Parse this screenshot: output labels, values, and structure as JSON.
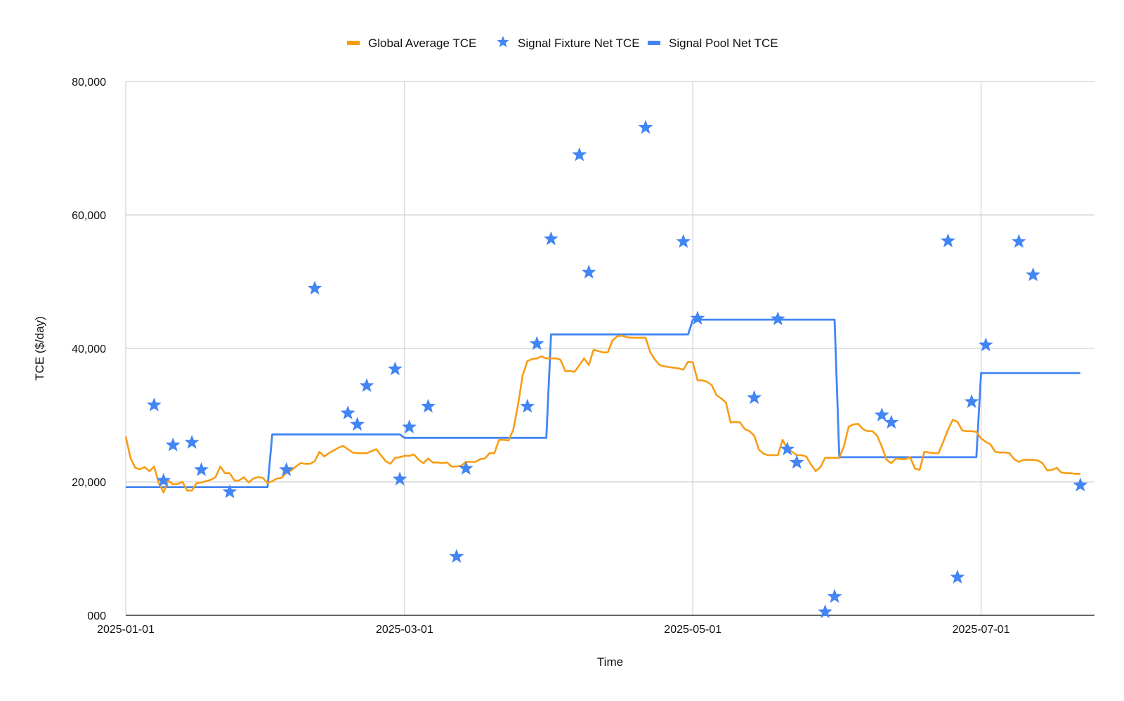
{
  "chart_data": {
    "type": "line",
    "title": "",
    "xlabel": "Time",
    "ylabel": "TCE ($/day)",
    "ylim": [
      0,
      80000
    ],
    "xlim": [
      "2025-01-01",
      "2025-07-25"
    ],
    "grid": true,
    "legend_position": "top-center",
    "y_ticks": [
      {
        "value": 0,
        "label": "000"
      },
      {
        "value": 20000,
        "label": "20,000"
      },
      {
        "value": 40000,
        "label": "40,000"
      },
      {
        "value": 60000,
        "label": "60,000"
      },
      {
        "value": 80000,
        "label": "80,000"
      }
    ],
    "x_ticks": [
      {
        "value": "2025-01-01",
        "label": "2025-01-01"
      },
      {
        "value": "2025-03-01",
        "label": "2025-03-01"
      },
      {
        "value": "2025-05-01",
        "label": "2025-05-01"
      },
      {
        "value": "2025-07-01",
        "label": "2025-07-01"
      }
    ],
    "series": [
      {
        "name": "Global Average TCE",
        "kind": "line",
        "color": "#f89c14",
        "points": [
          [
            "2025-01-01",
            26800
          ],
          [
            "2025-01-02",
            23600
          ],
          [
            "2025-01-03",
            22100
          ],
          [
            "2025-01-04",
            21900
          ],
          [
            "2025-01-05",
            22200
          ],
          [
            "2025-01-06",
            21600
          ],
          [
            "2025-01-07",
            22300
          ],
          [
            "2025-01-08",
            19800
          ],
          [
            "2025-01-09",
            18400
          ],
          [
            "2025-01-10",
            20200
          ],
          [
            "2025-01-11",
            19600
          ],
          [
            "2025-01-12",
            19700
          ],
          [
            "2025-01-13",
            20000
          ],
          [
            "2025-01-14",
            18700
          ],
          [
            "2025-01-15",
            18700
          ],
          [
            "2025-01-16",
            19800
          ],
          [
            "2025-01-17",
            19900
          ],
          [
            "2025-01-18",
            20100
          ],
          [
            "2025-01-19",
            20300
          ],
          [
            "2025-01-20",
            20700
          ],
          [
            "2025-01-21",
            22300
          ],
          [
            "2025-01-22",
            21300
          ],
          [
            "2025-01-23",
            21300
          ],
          [
            "2025-01-24",
            20200
          ],
          [
            "2025-01-25",
            20200
          ],
          [
            "2025-01-26",
            20700
          ],
          [
            "2025-01-27",
            19900
          ],
          [
            "2025-01-28",
            20500
          ],
          [
            "2025-01-29",
            20700
          ],
          [
            "2025-01-30",
            20600
          ],
          [
            "2025-01-31",
            19800
          ],
          [
            "2025-02-01",
            20100
          ],
          [
            "2025-02-02",
            20500
          ],
          [
            "2025-02-03",
            20600
          ],
          [
            "2025-02-04",
            21400
          ],
          [
            "2025-02-05",
            21700
          ],
          [
            "2025-02-06",
            22300
          ],
          [
            "2025-02-07",
            22800
          ],
          [
            "2025-02-08",
            22700
          ],
          [
            "2025-02-09",
            22700
          ],
          [
            "2025-02-10",
            23100
          ],
          [
            "2025-02-11",
            24500
          ],
          [
            "2025-02-12",
            23800
          ],
          [
            "2025-02-13",
            24300
          ],
          [
            "2025-02-14",
            24700
          ],
          [
            "2025-02-15",
            25100
          ],
          [
            "2025-02-16",
            25400
          ],
          [
            "2025-02-17",
            24900
          ],
          [
            "2025-02-18",
            24400
          ],
          [
            "2025-02-19",
            24300
          ],
          [
            "2025-02-20",
            24300
          ],
          [
            "2025-02-21",
            24300
          ],
          [
            "2025-02-22",
            24600
          ],
          [
            "2025-02-23",
            24900
          ],
          [
            "2025-02-24",
            24000
          ],
          [
            "2025-02-25",
            23100
          ],
          [
            "2025-02-26",
            22700
          ],
          [
            "2025-02-27",
            23600
          ],
          [
            "2025-02-28",
            23700
          ],
          [
            "2025-03-01",
            23900
          ],
          [
            "2025-03-02",
            23900
          ],
          [
            "2025-03-03",
            24100
          ],
          [
            "2025-03-04",
            23300
          ],
          [
            "2025-03-05",
            22800
          ],
          [
            "2025-03-06",
            23500
          ],
          [
            "2025-03-07",
            22900
          ],
          [
            "2025-03-08",
            22900
          ],
          [
            "2025-03-09",
            22800
          ],
          [
            "2025-03-10",
            22900
          ],
          [
            "2025-03-11",
            22300
          ],
          [
            "2025-03-12",
            22300
          ],
          [
            "2025-03-13",
            22400
          ],
          [
            "2025-03-14",
            23000
          ],
          [
            "2025-03-15",
            23000
          ],
          [
            "2025-03-16",
            23000
          ],
          [
            "2025-03-17",
            23400
          ],
          [
            "2025-03-18",
            23500
          ],
          [
            "2025-03-19",
            24300
          ],
          [
            "2025-03-20",
            24300
          ],
          [
            "2025-03-21",
            26300
          ],
          [
            "2025-03-22",
            26300
          ],
          [
            "2025-03-23",
            26200
          ],
          [
            "2025-03-24",
            27800
          ],
          [
            "2025-03-25",
            31500
          ],
          [
            "2025-03-26",
            36000
          ],
          [
            "2025-03-27",
            38100
          ],
          [
            "2025-03-28",
            38400
          ],
          [
            "2025-03-29",
            38500
          ],
          [
            "2025-03-30",
            38800
          ],
          [
            "2025-03-31",
            38500
          ],
          [
            "2025-04-01",
            38500
          ],
          [
            "2025-04-02",
            38500
          ],
          [
            "2025-04-03",
            38300
          ],
          [
            "2025-04-04",
            36600
          ],
          [
            "2025-04-05",
            36600
          ],
          [
            "2025-04-06",
            36500
          ],
          [
            "2025-04-07",
            37500
          ],
          [
            "2025-04-08",
            38500
          ],
          [
            "2025-04-09",
            37500
          ],
          [
            "2025-04-10",
            39800
          ],
          [
            "2025-04-11",
            39600
          ],
          [
            "2025-04-12",
            39400
          ],
          [
            "2025-04-13",
            39400
          ],
          [
            "2025-04-14",
            41200
          ],
          [
            "2025-04-15",
            41800
          ],
          [
            "2025-04-16",
            41900
          ],
          [
            "2025-04-17",
            41700
          ],
          [
            "2025-04-18",
            41600
          ],
          [
            "2025-04-19",
            41600
          ],
          [
            "2025-04-20",
            41600
          ],
          [
            "2025-04-21",
            41600
          ],
          [
            "2025-04-22",
            39400
          ],
          [
            "2025-04-23",
            38300
          ],
          [
            "2025-04-24",
            37500
          ],
          [
            "2025-04-25",
            37300
          ],
          [
            "2025-04-26",
            37200
          ],
          [
            "2025-04-27",
            37100
          ],
          [
            "2025-04-28",
            37000
          ],
          [
            "2025-04-29",
            36800
          ],
          [
            "2025-04-30",
            38000
          ],
          [
            "2025-05-01",
            37900
          ],
          [
            "2025-05-02",
            35200
          ],
          [
            "2025-05-03",
            35200
          ],
          [
            "2025-05-04",
            35000
          ],
          [
            "2025-05-05",
            34500
          ],
          [
            "2025-05-06",
            33000
          ],
          [
            "2025-05-07",
            32500
          ],
          [
            "2025-05-08",
            31900
          ],
          [
            "2025-05-09",
            28900
          ],
          [
            "2025-05-10",
            29000
          ],
          [
            "2025-05-11",
            28900
          ],
          [
            "2025-05-12",
            27900
          ],
          [
            "2025-05-13",
            27600
          ],
          [
            "2025-05-14",
            26900
          ],
          [
            "2025-05-15",
            24800
          ],
          [
            "2025-05-16",
            24200
          ],
          [
            "2025-05-17",
            24000
          ],
          [
            "2025-05-18",
            24000
          ],
          [
            "2025-05-19",
            24000
          ],
          [
            "2025-05-20",
            26300
          ],
          [
            "2025-05-21",
            24900
          ],
          [
            "2025-05-22",
            24500
          ],
          [
            "2025-05-23",
            24000
          ],
          [
            "2025-05-24",
            24000
          ],
          [
            "2025-05-25",
            23800
          ],
          [
            "2025-05-26",
            22600
          ],
          [
            "2025-05-27",
            21600
          ],
          [
            "2025-05-28",
            22200
          ],
          [
            "2025-05-29",
            23600
          ],
          [
            "2025-05-30",
            23600
          ],
          [
            "2025-05-31",
            23600
          ],
          [
            "2025-06-01",
            23600
          ],
          [
            "2025-06-02",
            25400
          ],
          [
            "2025-06-03",
            28300
          ],
          [
            "2025-06-04",
            28600
          ],
          [
            "2025-06-05",
            28700
          ],
          [
            "2025-06-06",
            27900
          ],
          [
            "2025-06-07",
            27600
          ],
          [
            "2025-06-08",
            27600
          ],
          [
            "2025-06-09",
            26900
          ],
          [
            "2025-06-10",
            25300
          ],
          [
            "2025-06-11",
            23300
          ],
          [
            "2025-06-12",
            22800
          ],
          [
            "2025-06-13",
            23500
          ],
          [
            "2025-06-14",
            23400
          ],
          [
            "2025-06-15",
            23400
          ],
          [
            "2025-06-16",
            23700
          ],
          [
            "2025-06-17",
            22000
          ],
          [
            "2025-06-18",
            21800
          ],
          [
            "2025-06-19",
            24500
          ],
          [
            "2025-06-20",
            24400
          ],
          [
            "2025-06-21",
            24300
          ],
          [
            "2025-06-22",
            24300
          ],
          [
            "2025-06-23",
            26000
          ],
          [
            "2025-06-24",
            27800
          ],
          [
            "2025-06-25",
            29300
          ],
          [
            "2025-06-26",
            29000
          ],
          [
            "2025-06-27",
            27700
          ],
          [
            "2025-06-28",
            27600
          ],
          [
            "2025-06-29",
            27600
          ],
          [
            "2025-06-30",
            27500
          ],
          [
            "2025-07-01",
            26500
          ],
          [
            "2025-07-02",
            26000
          ],
          [
            "2025-07-03",
            25600
          ],
          [
            "2025-07-04",
            24500
          ],
          [
            "2025-07-05",
            24400
          ],
          [
            "2025-07-06",
            24400
          ],
          [
            "2025-07-07",
            24300
          ],
          [
            "2025-07-08",
            23400
          ],
          [
            "2025-07-09",
            23000
          ],
          [
            "2025-07-10",
            23300
          ],
          [
            "2025-07-11",
            23300
          ],
          [
            "2025-07-12",
            23300
          ],
          [
            "2025-07-13",
            23200
          ],
          [
            "2025-07-14",
            22800
          ],
          [
            "2025-07-15",
            21700
          ],
          [
            "2025-07-16",
            21800
          ],
          [
            "2025-07-17",
            22100
          ],
          [
            "2025-07-18",
            21400
          ],
          [
            "2025-07-19",
            21300
          ],
          [
            "2025-07-20",
            21300
          ],
          [
            "2025-07-21",
            21200
          ],
          [
            "2025-07-22",
            21200
          ]
        ]
      },
      {
        "name": "Signal Fixture Net TCE",
        "kind": "scatter",
        "marker": "star",
        "color": "#4285f4",
        "points": [
          [
            "2025-01-07",
            31500
          ],
          [
            "2025-01-09",
            20200
          ],
          [
            "2025-01-11",
            25500
          ],
          [
            "2025-01-15",
            25900
          ],
          [
            "2025-01-17",
            21800
          ],
          [
            "2025-01-23",
            18500
          ],
          [
            "2025-02-04",
            21800
          ],
          [
            "2025-02-10",
            49000
          ],
          [
            "2025-02-17",
            30300
          ],
          [
            "2025-02-19",
            28600
          ],
          [
            "2025-02-21",
            34400
          ],
          [
            "2025-02-27",
            36900
          ],
          [
            "2025-02-28",
            20400
          ],
          [
            "2025-03-02",
            28200
          ],
          [
            "2025-03-06",
            31300
          ],
          [
            "2025-03-12",
            8800
          ],
          [
            "2025-03-14",
            22000
          ],
          [
            "2025-03-27",
            31300
          ],
          [
            "2025-03-29",
            40700
          ],
          [
            "2025-04-01",
            56400
          ],
          [
            "2025-04-07",
            69000
          ],
          [
            "2025-04-09",
            51400
          ],
          [
            "2025-04-21",
            73100
          ],
          [
            "2025-04-29",
            56000
          ],
          [
            "2025-05-02",
            44500
          ],
          [
            "2025-05-14",
            32600
          ],
          [
            "2025-05-19",
            44400
          ],
          [
            "2025-05-21",
            24900
          ],
          [
            "2025-05-23",
            22900
          ],
          [
            "2025-05-29",
            500
          ],
          [
            "2025-05-31",
            2800
          ],
          [
            "2025-06-10",
            30000
          ],
          [
            "2025-06-12",
            28900
          ],
          [
            "2025-06-24",
            56100
          ],
          [
            "2025-06-26",
            5700
          ],
          [
            "2025-06-29",
            32000
          ],
          [
            "2025-07-02",
            40500
          ],
          [
            "2025-07-09",
            56000
          ],
          [
            "2025-07-12",
            51000
          ],
          [
            "2025-07-22",
            19500
          ]
        ]
      },
      {
        "name": "Signal Pool Net TCE",
        "kind": "step",
        "color": "#4285f4",
        "points": [
          [
            "2025-01-01",
            19200
          ],
          [
            "2025-01-31",
            19200
          ],
          [
            "2025-02-01",
            27100
          ],
          [
            "2025-02-28",
            27100
          ],
          [
            "2025-03-01",
            26600
          ],
          [
            "2025-03-31",
            26600
          ],
          [
            "2025-04-01",
            42100
          ],
          [
            "2025-04-30",
            42100
          ],
          [
            "2025-05-01",
            44300
          ],
          [
            "2025-05-31",
            44300
          ],
          [
            "2025-06-01",
            23700
          ],
          [
            "2025-06-30",
            23700
          ],
          [
            "2025-07-01",
            36300
          ],
          [
            "2025-07-22",
            36300
          ]
        ]
      }
    ]
  }
}
